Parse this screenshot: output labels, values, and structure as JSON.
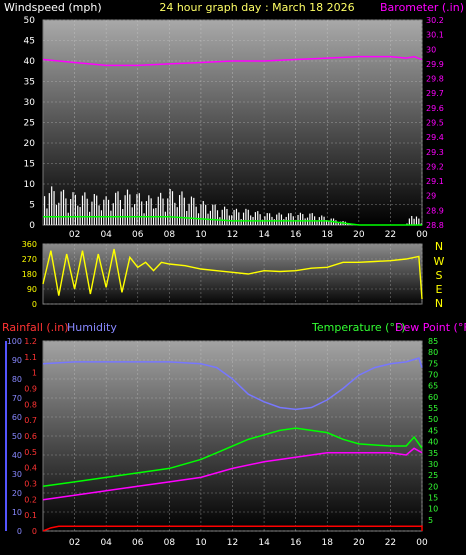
{
  "header": {
    "left_label": "Windspeed (mph)",
    "title": "24 hour graph day : March 18 2026",
    "right_label": "Barometer (.in)"
  },
  "colors": {
    "background": "#000000",
    "wind": "#ffffff",
    "gust": "#ffffff",
    "avg_wind": "#00ff00",
    "barometer": "#ff00ff",
    "direction": "#ffff00",
    "rainfall": "#ff0000",
    "humidity": "#7777ff",
    "temperature": "#00ff00",
    "dew_point": "#ff00ff",
    "axis_left": "#ffffff",
    "axis_compass": "#ffff00",
    "axis_rain": "#ff3333",
    "axis_humidity": "#8888ff",
    "axis_temp": "#33ff33"
  },
  "compass": [
    "N",
    "W",
    "S",
    "E",
    "N"
  ],
  "bottom_header": {
    "rain_label": "Rainfall (.in)",
    "humidity_label": "Humidity",
    "temp_label": "Temperature (°F)",
    "dew_label": "Dew Point (°F)"
  },
  "chart_data": [
    {
      "name": "wind_baro",
      "type": "line",
      "xlabel": "",
      "x_ticks": [
        "02",
        "04",
        "06",
        "08",
        "10",
        "12",
        "14",
        "16",
        "18",
        "20",
        "22",
        "00"
      ],
      "y_left": {
        "label": "Windspeed (mph)",
        "ylim": [
          0,
          50
        ],
        "ticks": [
          0,
          5,
          10,
          15,
          20,
          25,
          30,
          35,
          40,
          45,
          50
        ]
      },
      "y_right": {
        "label": "Barometer (.in)",
        "ylim": [
          28.8,
          30.2
        ],
        "ticks": [
          "28.8",
          "28.9",
          "29",
          "29.1",
          "29.2",
          "29.3",
          "29.4",
          "29.5",
          "29.6",
          "29.7",
          "29.8",
          "29.9",
          "30",
          "30.1",
          "30.2"
        ]
      },
      "series": [
        {
          "name": "Barometer",
          "axis": "right",
          "x": [
            0,
            2,
            4,
            5,
            6,
            8,
            10,
            12,
            14,
            16,
            18,
            20,
            22,
            23,
            23.5,
            24
          ],
          "values": [
            29.93,
            29.91,
            29.89,
            29.89,
            29.89,
            29.9,
            29.91,
            29.92,
            29.92,
            29.93,
            29.94,
            29.95,
            29.95,
            29.94,
            29.95,
            29.93
          ]
        },
        {
          "name": "Windspeed gust envelope",
          "axis": "left",
          "x": [
            0,
            1,
            2,
            3,
            4,
            5,
            6,
            7,
            8,
            9,
            10,
            11,
            12,
            13,
            14,
            15,
            16,
            17,
            18,
            19,
            20,
            21,
            22,
            23,
            23.5,
            24
          ],
          "values": [
            10,
            9,
            8,
            8,
            7,
            9,
            8,
            7,
            9,
            8,
            6,
            5,
            4,
            4,
            3,
            3,
            3,
            3,
            2,
            1,
            0,
            0,
            0,
            0,
            4,
            0
          ]
        },
        {
          "name": "Average windspeed",
          "axis": "left",
          "x": [
            0,
            2,
            4,
            6,
            8,
            10,
            12,
            14,
            16,
            18,
            19,
            20,
            24
          ],
          "values": [
            2,
            2,
            2,
            2,
            2,
            1.5,
            1,
            1,
            1,
            1,
            0.5,
            0,
            0
          ]
        }
      ]
    },
    {
      "name": "wind_direction",
      "type": "line",
      "y_left": {
        "ylim": [
          0,
          360
        ],
        "ticks": [
          0,
          90,
          180,
          270,
          360
        ]
      },
      "series": [
        {
          "name": "Wind direction",
          "x": [
            0,
            0.5,
            1,
            1.5,
            2,
            2.5,
            3,
            3.5,
            4,
            4.5,
            5,
            5.5,
            6,
            6.5,
            7,
            7.5,
            8,
            9,
            10,
            11,
            12,
            13,
            14,
            15,
            16,
            17,
            18,
            19,
            20,
            21,
            22,
            23,
            23.8,
            24
          ],
          "values": [
            120,
            320,
            50,
            300,
            90,
            320,
            60,
            300,
            100,
            330,
            70,
            280,
            220,
            250,
            200,
            250,
            240,
            230,
            210,
            200,
            190,
            180,
            200,
            195,
            200,
            215,
            220,
            250,
            250,
            255,
            260,
            270,
            285,
            30
          ]
        }
      ]
    },
    {
      "name": "rain_humidity_temp",
      "type": "line",
      "x_ticks": [
        "02",
        "04",
        "06",
        "08",
        "10",
        "12",
        "14",
        "16",
        "18",
        "20",
        "22",
        "00"
      ],
      "y_rain": {
        "label": "Rainfall (.in)",
        "ylim": [
          0,
          1.2
        ],
        "ticks": [
          "0",
          "0.1",
          "0.2",
          "0.3",
          "0.4",
          "0.5",
          "0.6",
          "0.7",
          "0.8",
          "0.9",
          "1",
          "1.1",
          "1.2"
        ]
      },
      "y_humidity": {
        "label": "Humidity",
        "ylim": [
          0,
          100
        ],
        "ticks": [
          0,
          10,
          20,
          30,
          40,
          50,
          60,
          70,
          80,
          90,
          100
        ]
      },
      "y_temp": {
        "label": "Temperature (°F)",
        "ylim": [
          0,
          85
        ],
        "ticks": [
          5,
          10,
          15,
          20,
          25,
          30,
          35,
          40,
          45,
          50,
          55,
          60,
          65,
          70,
          75,
          80,
          85
        ]
      },
      "series": [
        {
          "name": "Humidity",
          "axis": "humidity",
          "x": [
            0,
            2,
            4,
            6,
            8,
            10,
            11,
            12,
            13,
            14,
            15,
            16,
            17,
            18,
            19,
            20,
            21,
            22,
            23,
            23.8,
            24
          ],
          "values": [
            88,
            89,
            89,
            89,
            89,
            88,
            86,
            80,
            72,
            68,
            65,
            64,
            65,
            69,
            75,
            82,
            86,
            88,
            89,
            91,
            86
          ]
        },
        {
          "name": "Temperature",
          "axis": "temp",
          "x": [
            0,
            2,
            4,
            6,
            8,
            10,
            11,
            12,
            13,
            14,
            15,
            16,
            17,
            18,
            19,
            20,
            22,
            23,
            23.5,
            24
          ],
          "values": [
            20,
            22,
            24,
            26,
            28,
            32,
            35,
            38,
            41,
            43,
            45,
            46,
            45,
            44,
            41,
            39,
            38,
            38,
            42,
            37
          ]
        },
        {
          "name": "Dew Point",
          "axis": "temp",
          "x": [
            0,
            2,
            4,
            6,
            8,
            10,
            12,
            14,
            16,
            18,
            20,
            22,
            23,
            23.5,
            24
          ],
          "values": [
            14,
            16,
            18,
            20,
            22,
            24,
            28,
            31,
            33,
            35,
            35,
            35,
            34,
            37,
            35
          ]
        },
        {
          "name": "Rainfall",
          "axis": "rain",
          "x": [
            0,
            0.5,
            1,
            24,
            24
          ],
          "values": [
            0,
            0.02,
            0.03,
            0.03,
            0
          ]
        }
      ]
    }
  ]
}
